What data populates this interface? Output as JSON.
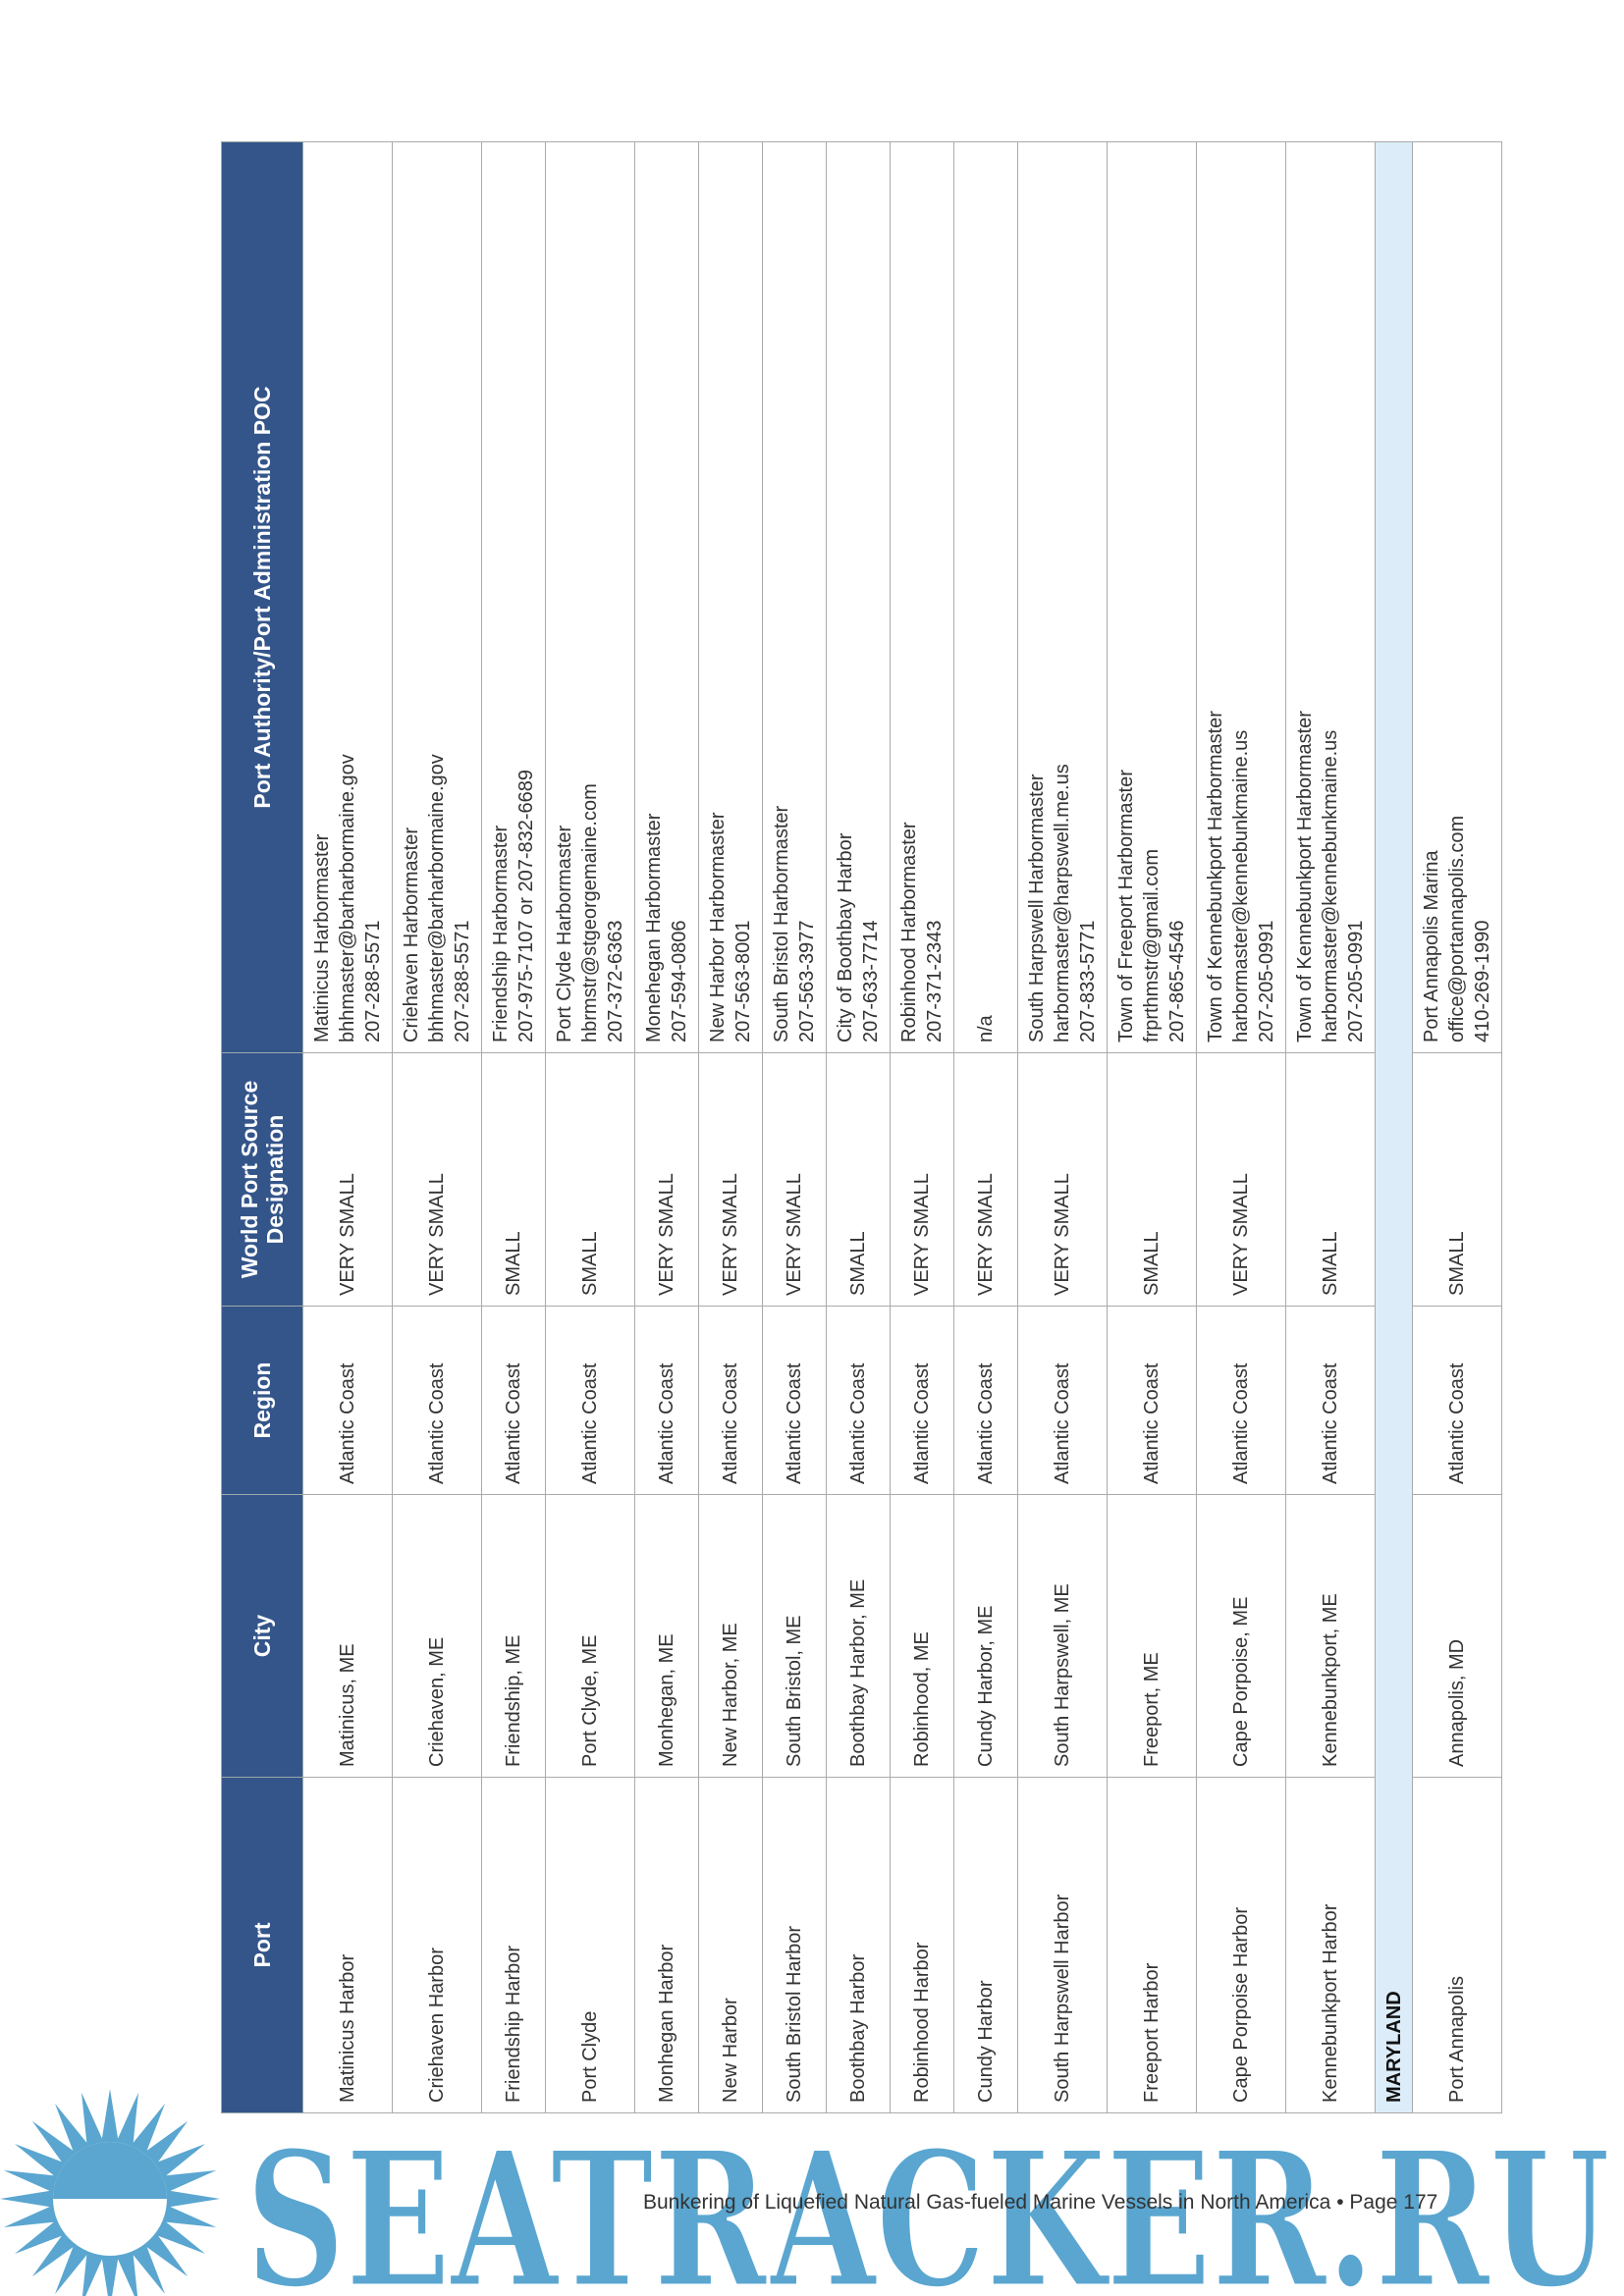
{
  "table": {
    "columns": [
      "Port",
      "City",
      "Region",
      "World Port Source Designation",
      "Port Authority/Port Administration POC"
    ],
    "rows": [
      {
        "cells": [
          "Matinicus Harbor",
          "Matinicus, ME",
          "Atlantic Coast",
          "VERY SMALL",
          [
            "Matinicus Harbormaster",
            "bhhmaster@barharbormaine.gov",
            "207-288-5571"
          ]
        ]
      },
      {
        "cells": [
          "Criehaven Harbor",
          "Criehaven, ME",
          "Atlantic Coast",
          "VERY SMALL",
          [
            "Criehaven Harbormaster",
            "bhhmaster@barharbormaine.gov",
            "207-288-5571"
          ]
        ]
      },
      {
        "cells": [
          "Friendship Harbor",
          "Friendship, ME",
          "Atlantic Coast",
          "SMALL",
          [
            "Friendship Harbormaster",
            "207-975-7107 or 207-832-6689"
          ]
        ]
      },
      {
        "cells": [
          "Port Clyde",
          "Port Clyde, ME",
          "Atlantic Coast",
          "SMALL",
          [
            "Port Clyde Harbormaster",
            "hbrmstr@stgeorgemaine.com",
            "207-372-6363"
          ]
        ]
      },
      {
        "cells": [
          "Monhegan Harbor",
          "Monhegan, ME",
          "Atlantic Coast",
          "VERY SMALL",
          [
            "Monehegan Harbormaster",
            "207-594-0806"
          ]
        ]
      },
      {
        "cells": [
          "New Harbor",
          "New Harbor, ME",
          "Atlantic Coast",
          "VERY SMALL",
          [
            "New Harbor Harbormaster",
            "207-563-8001"
          ]
        ]
      },
      {
        "cells": [
          "South Bristol Harbor",
          "South Bristol, ME",
          "Atlantic Coast",
          "VERY SMALL",
          [
            "South Bristol Harbormaster",
            "207-563-3977"
          ]
        ]
      },
      {
        "cells": [
          "Boothbay Harbor",
          "Boothbay Harbor, ME",
          "Atlantic Coast",
          "SMALL",
          [
            "City of Boothbay Harbor",
            "207-633-7714"
          ]
        ]
      },
      {
        "cells": [
          "Robinhood Harbor",
          "Robinhood, ME",
          "Atlantic Coast",
          "VERY SMALL",
          [
            "Robinhood Harbormaster",
            "207-371-2343"
          ]
        ]
      },
      {
        "cells": [
          "Cundy Harbor",
          "Cundy Harbor, ME",
          "Atlantic Coast",
          "VERY SMALL",
          [
            "n/a"
          ]
        ]
      },
      {
        "cells": [
          "South Harpswell Harbor",
          "South Harpswell, ME",
          "Atlantic Coast",
          "VERY SMALL",
          [
            "South Harpswell Harbormaster",
            "harbormaster@harpswell.me.us",
            "207-833-5771"
          ]
        ]
      },
      {
        "cells": [
          "Freeport Harbor",
          "Freeport, ME",
          "Atlantic Coast",
          "SMALL",
          [
            "Town of Freeport Harbormaster",
            "frprthmstr@gmail.com",
            "207-865-4546"
          ]
        ]
      },
      {
        "cells": [
          "Cape Porpoise Harbor",
          "Cape Porpoise, ME",
          "Atlantic Coast",
          "VERY SMALL",
          [
            "Town of Kennebunkport Harbormaster",
            "harbormaster@kennebunkmaine.us",
            "207-205-0991"
          ]
        ]
      },
      {
        "cells": [
          "Kennebunkport Harbor",
          "Kennebunkport, ME",
          "Atlantic Coast",
          "SMALL",
          [
            "Town of Kennebunkport Harbormaster",
            "harbormaster@kennebunkmaine.us",
            "207-205-0991"
          ]
        ]
      },
      {
        "section": "MARYLAND"
      },
      {
        "cells": [
          "Port Annapolis",
          "Annapolis, MD",
          "Atlantic Coast",
          "SMALL",
          [
            "Port Annapolis Marina",
            "office@portannapolis.com",
            "410-269-1990"
          ]
        ]
      }
    ]
  },
  "footer": "Bunkering of Liquefied Natural Gas-fueled Marine Vessels in North America • Page 177",
  "watermark": "SEATRACKER.RU"
}
